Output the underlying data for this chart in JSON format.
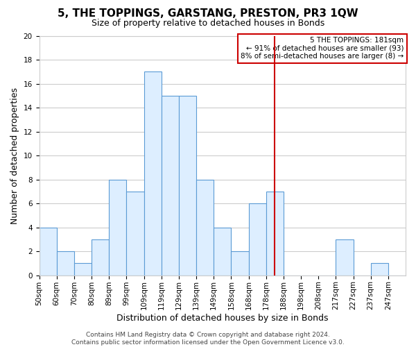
{
  "title": "5, THE TOPPINGS, GARSTANG, PRESTON, PR3 1QW",
  "subtitle": "Size of property relative to detached houses in Bonds",
  "xlabel": "Distribution of detached houses by size in Bonds",
  "ylabel": "Number of detached properties",
  "footer_line1": "Contains HM Land Registry data © Crown copyright and database right 2024.",
  "footer_line2": "Contains public sector information licensed under the Open Government Licence v3.0.",
  "bin_labels": [
    "50sqm",
    "60sqm",
    "70sqm",
    "80sqm",
    "89sqm",
    "99sqm",
    "109sqm",
    "119sqm",
    "129sqm",
    "139sqm",
    "149sqm",
    "158sqm",
    "168sqm",
    "178sqm",
    "188sqm",
    "198sqm",
    "208sqm",
    "217sqm",
    "227sqm",
    "237sqm",
    "247sqm"
  ],
  "bar_heights": [
    4,
    2,
    1,
    3,
    8,
    7,
    17,
    15,
    15,
    8,
    4,
    2,
    6,
    7,
    0,
    0,
    0,
    3,
    0,
    1,
    0
  ],
  "bar_color": "#ddeeff",
  "bar_edge_color": "#5b9bd5",
  "grid_color": "#cccccc",
  "vline_position": 13.5,
  "vline_color": "#cc0000",
  "ylim": [
    0,
    20
  ],
  "yticks": [
    0,
    2,
    4,
    6,
    8,
    10,
    12,
    14,
    16,
    18,
    20
  ],
  "annotation_title": "5 THE TOPPINGS: 181sqm",
  "annotation_line1": "← 91% of detached houses are smaller (93)",
  "annotation_line2": "8% of semi-detached houses are larger (8) →",
  "annotation_box_color": "#ffffff",
  "annotation_box_edge": "#cc0000",
  "title_fontsize": 11,
  "subtitle_fontsize": 9,
  "axis_label_fontsize": 9,
  "tick_fontsize": 7.5,
  "footer_fontsize": 6.5,
  "annotation_fontsize": 7.5
}
